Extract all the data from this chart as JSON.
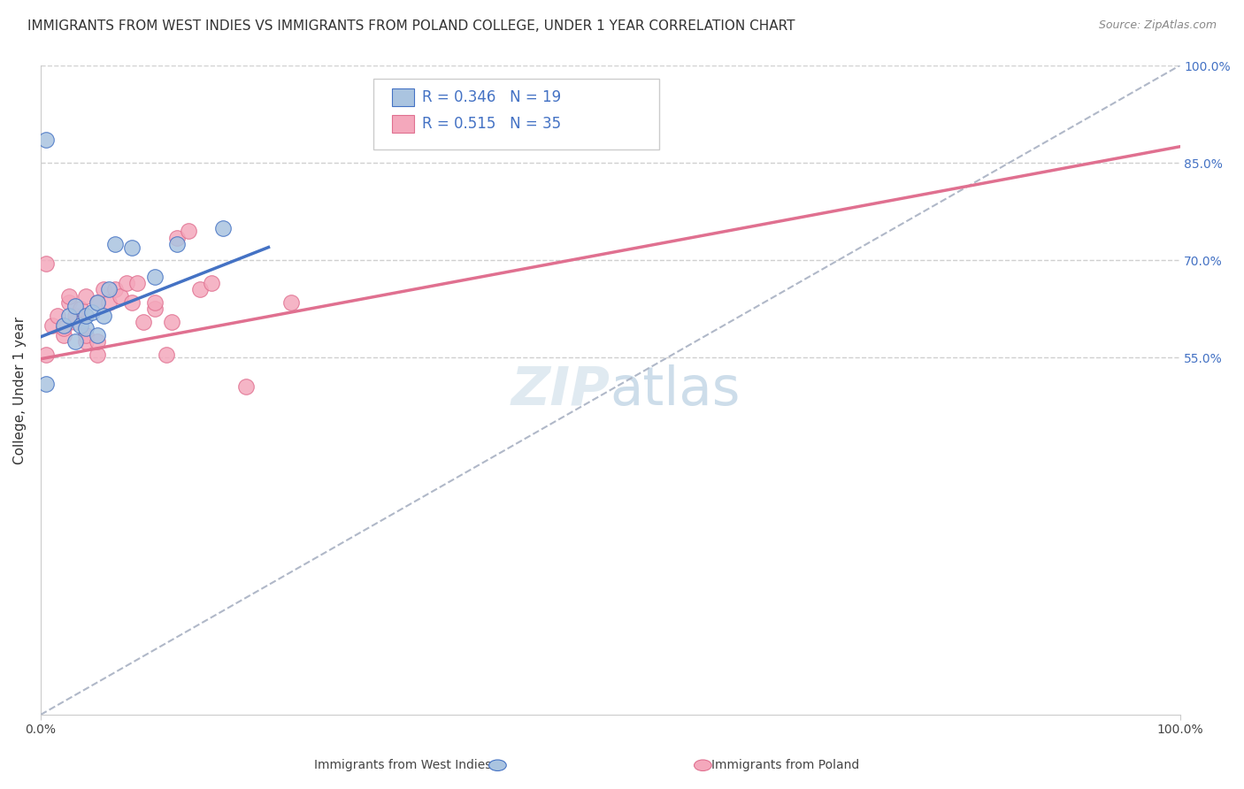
{
  "title": "IMMIGRANTS FROM WEST INDIES VS IMMIGRANTS FROM POLAND COLLEGE, UNDER 1 YEAR CORRELATION CHART",
  "source": "Source: ZipAtlas.com",
  "ylabel": "College, Under 1 year",
  "xlim": [
    0.0,
    1.0
  ],
  "ylim": [
    0.0,
    1.0
  ],
  "r_west_indies": 0.346,
  "n_west_indies": 19,
  "r_poland": 0.515,
  "n_poland": 35,
  "color_west_indies": "#aac4e0",
  "color_poland": "#f4a8bc",
  "line_color_west_indies": "#4472c4",
  "line_color_poland": "#e07090",
  "diagonal_color": "#b0b8c8",
  "west_indies_x": [
    0.005,
    0.02,
    0.025,
    0.03,
    0.03,
    0.035,
    0.04,
    0.04,
    0.045,
    0.05,
    0.05,
    0.055,
    0.06,
    0.065,
    0.08,
    0.1,
    0.12,
    0.16,
    0.005
  ],
  "west_indies_y": [
    0.51,
    0.6,
    0.615,
    0.575,
    0.63,
    0.6,
    0.595,
    0.615,
    0.62,
    0.585,
    0.635,
    0.615,
    0.655,
    0.725,
    0.72,
    0.675,
    0.725,
    0.75,
    0.885
  ],
  "poland_x": [
    0.005,
    0.01,
    0.015,
    0.02,
    0.02,
    0.025,
    0.025,
    0.03,
    0.03,
    0.035,
    0.04,
    0.04,
    0.04,
    0.05,
    0.05,
    0.05,
    0.055,
    0.06,
    0.065,
    0.07,
    0.075,
    0.08,
    0.085,
    0.09,
    0.1,
    0.1,
    0.11,
    0.115,
    0.12,
    0.13,
    0.14,
    0.15,
    0.18,
    0.22,
    0.005
  ],
  "poland_y": [
    0.555,
    0.6,
    0.615,
    0.585,
    0.595,
    0.635,
    0.645,
    0.605,
    0.615,
    0.625,
    0.575,
    0.585,
    0.645,
    0.555,
    0.575,
    0.635,
    0.655,
    0.635,
    0.655,
    0.645,
    0.665,
    0.635,
    0.665,
    0.605,
    0.625,
    0.635,
    0.555,
    0.605,
    0.735,
    0.745,
    0.655,
    0.665,
    0.505,
    0.635,
    0.695
  ],
  "wi_line_x0": 0.0,
  "wi_line_y0": 0.582,
  "wi_line_x1": 0.2,
  "wi_line_y1": 0.72,
  "po_line_x0": 0.0,
  "po_line_y0": 0.548,
  "po_line_x1": 1.0,
  "po_line_y1": 0.875,
  "background_color": "#ffffff",
  "grid_color": "#d0d0d0",
  "right_tick_color": "#4472c4",
  "title_fontsize": 11,
  "axis_label_fontsize": 11,
  "legend_fontsize": 12,
  "tick_fontsize": 10,
  "ytick_positions": [
    0.55,
    0.7,
    0.85,
    1.0
  ],
  "ytick_labels": [
    "55.0%",
    "70.0%",
    "85.0%",
    "100.0%"
  ]
}
